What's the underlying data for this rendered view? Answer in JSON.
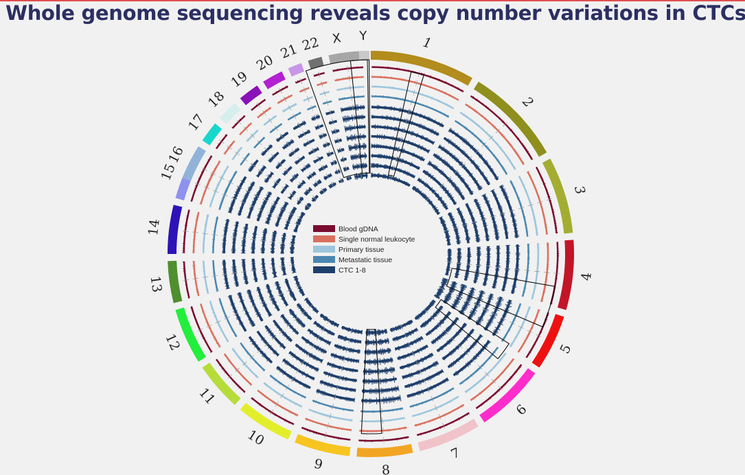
{
  "slide": {
    "title": "Whole genome sequencing reveals copy number variations in CTCs"
  },
  "legend": [
    {
      "label": "Blood gDNA",
      "color": "#7b0c2f"
    },
    {
      "label": "Single normal leukocyte",
      "color": "#d9705e"
    },
    {
      "label": "Primary tissue",
      "color": "#9dc6dd"
    },
    {
      "label": "Metastatic tissue",
      "color": "#4a87b0"
    },
    {
      "label": "CTC 1-8",
      "color": "#1f3f6b"
    }
  ],
  "chromosomes": [
    {
      "label": "1",
      "color": "#b28c1c"
    },
    {
      "label": "2",
      "color": "#8f8f1e"
    },
    {
      "label": "3",
      "color": "#a3ad32"
    },
    {
      "label": "4",
      "color": "#c21527"
    },
    {
      "label": "5",
      "color": "#ee1111"
    },
    {
      "label": "6",
      "color": "#ff2ccc"
    },
    {
      "label": "7",
      "color": "#f0c3c8"
    },
    {
      "label": "8",
      "color": "#f2a524"
    },
    {
      "label": "9",
      "color": "#f7c520"
    },
    {
      "label": "10",
      "color": "#e3ee2b"
    },
    {
      "label": "11",
      "color": "#b6dc3a"
    },
    {
      "label": "12",
      "color": "#22ee3c"
    },
    {
      "label": "13",
      "color": "#4e8f2e"
    },
    {
      "label": "14",
      "color": "#2d14b8"
    },
    {
      "label": "15",
      "color": "#8f91ee"
    },
    {
      "label": "16",
      "color": "#91b3d8"
    },
    {
      "label": "17",
      "color": "#16d7cc"
    },
    {
      "label": "18",
      "color": "#d6eeee"
    },
    {
      "label": "19",
      "color": "#8a13b8"
    },
    {
      "label": "20",
      "color": "#b222d0"
    },
    {
      "label": "21",
      "color": "#c896e6"
    },
    {
      "label": "22",
      "color": "#707070"
    },
    {
      "label": "X",
      "color": "#a6a6a6"
    },
    {
      "label": "Y",
      "color": "#c9c9c9"
    }
  ],
  "highlighted_regions": [
    "1",
    "5",
    "6",
    "8",
    "X",
    "Y"
  ]
}
